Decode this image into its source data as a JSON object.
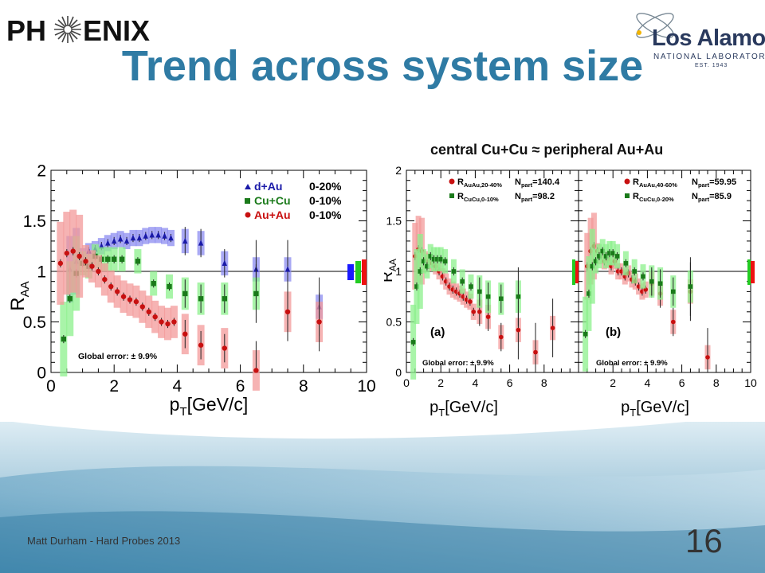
{
  "header": {
    "experiment_logo": {
      "text_before": "PH",
      "text_after": "ENIX"
    },
    "lab_logo": {
      "name": "Los Alamos",
      "sub": "NATIONAL LABORATORY",
      "est": "EST. 1943"
    }
  },
  "slide": {
    "title": "Trend across system size",
    "subtitle": "central Cu+Cu ≈ peripheral Au+Au",
    "footer": "Matt Durham - Hard Probes 2013",
    "page_number": "16"
  },
  "colors": {
    "title": "#2f7ba4",
    "dAu": "#1a1aa8",
    "CuCu": "#1a7a1a",
    "AuAu": "#c81010"
  },
  "chart_data": [
    {
      "type": "scatter",
      "id": "left",
      "xlabel": "p_T[GeV/c]",
      "ylabel": "R_AA",
      "xlim": [
        0,
        10
      ],
      "ylim": [
        0,
        2
      ],
      "x_ticks": [
        "0",
        "2",
        "4",
        "6",
        "8",
        "10"
      ],
      "y_ticks": [
        "0",
        "0.5",
        "1",
        "1.5",
        "2"
      ],
      "reference_line": 1,
      "global_error": "Global error:  ± 9.9%",
      "legend_position": "top-right",
      "series": [
        {
          "name": "d+Au",
          "cent": "0-20%",
          "marker": "triangle",
          "color": "#1a1aa8",
          "x": [
            0.6,
            0.8,
            1.0,
            1.2,
            1.4,
            1.6,
            1.8,
            2.0,
            2.2,
            2.4,
            2.6,
            2.8,
            3.0,
            3.2,
            3.4,
            3.6,
            3.8,
            4.25,
            4.75,
            5.5,
            6.5,
            7.5,
            8.5
          ],
          "y": [
            1.02,
            1.1,
            1.15,
            1.2,
            1.22,
            1.25,
            1.28,
            1.3,
            1.32,
            1.3,
            1.33,
            1.33,
            1.35,
            1.36,
            1.36,
            1.35,
            1.33,
            1.3,
            1.28,
            1.08,
            1.02,
            1.02,
            0.65
          ]
        },
        {
          "name": "Cu+Cu",
          "cent": "0-10%",
          "marker": "square",
          "color": "#1a7a1a",
          "x": [
            0.4,
            0.6,
            0.8,
            1.0,
            1.2,
            1.4,
            1.6,
            1.8,
            2.0,
            2.25,
            2.75,
            3.25,
            3.75,
            4.25,
            4.75,
            5.5,
            6.5
          ],
          "y": [
            0.33,
            0.73,
            0.98,
            1.08,
            1.05,
            1.15,
            1.12,
            1.12,
            1.12,
            1.12,
            1.1,
            0.88,
            0.85,
            0.78,
            0.73,
            0.73,
            0.78
          ]
        },
        {
          "name": "Au+Au",
          "cent": "0-10%",
          "marker": "circle",
          "color": "#c81010",
          "x": [
            0.3,
            0.5,
            0.7,
            0.9,
            1.1,
            1.3,
            1.5,
            1.7,
            1.9,
            2.1,
            2.3,
            2.5,
            2.7,
            2.9,
            3.1,
            3.3,
            3.5,
            3.7,
            3.9,
            4.25,
            4.75,
            5.5,
            6.5,
            7.5,
            8.5
          ],
          "y": [
            1.08,
            1.18,
            1.2,
            1.15,
            1.1,
            1.05,
            1.0,
            0.92,
            0.85,
            0.8,
            0.75,
            0.72,
            0.7,
            0.65,
            0.6,
            0.55,
            0.5,
            0.48,
            0.5,
            0.38,
            0.27,
            0.24,
            0.02,
            0.6,
            0.5
          ]
        }
      ]
    },
    {
      "type": "scatter",
      "id": "right-a",
      "panel_label": "(a)",
      "xlabel": "p_T[GeV/c]",
      "ylabel": "R_AA",
      "xlim": [
        0,
        10
      ],
      "ylim": [
        0,
        2
      ],
      "x_ticks": [
        "0",
        "2",
        "4",
        "6",
        "8"
      ],
      "y_ticks": [
        "0",
        "0.5",
        "1",
        "1.5",
        "2"
      ],
      "reference_line": 1,
      "global_error": "Global error:  ± 9.9%",
      "series": [
        {
          "name": "R_AuAu,20-40%",
          "npart": "N_part=140.4",
          "marker": "circle",
          "color": "#c81010",
          "x": [
            0.5,
            0.7,
            0.9,
            1.1,
            1.3,
            1.5,
            1.7,
            1.9,
            2.1,
            2.3,
            2.5,
            2.7,
            2.9,
            3.1,
            3.3,
            3.5,
            3.7,
            3.9,
            4.25,
            4.75,
            5.5,
            6.5,
            7.5,
            8.5
          ],
          "y": [
            1.15,
            1.22,
            1.2,
            1.12,
            1.1,
            1.08,
            1.05,
            1.0,
            0.95,
            0.9,
            0.85,
            0.82,
            0.8,
            0.78,
            0.75,
            0.72,
            0.7,
            0.6,
            0.6,
            0.55,
            0.35,
            0.42,
            0.2,
            0.44
          ]
        },
        {
          "name": "R_CuCu,0-10%",
          "npart": "N_part=98.2",
          "marker": "square",
          "color": "#1a7a1a",
          "x": [
            0.4,
            0.6,
            0.8,
            1.0,
            1.2,
            1.4,
            1.6,
            1.8,
            2.0,
            2.25,
            2.75,
            3.25,
            3.75,
            4.25,
            4.75,
            5.5,
            6.5
          ],
          "y": [
            0.3,
            0.85,
            1.0,
            1.1,
            1.05,
            1.15,
            1.12,
            1.12,
            1.12,
            1.1,
            1.0,
            0.9,
            0.85,
            0.8,
            0.75,
            0.73,
            0.75
          ]
        }
      ]
    },
    {
      "type": "scatter",
      "id": "right-b",
      "panel_label": "(b)",
      "xlabel": "p_T[GeV/c]",
      "xlim": [
        0,
        10
      ],
      "ylim": [
        0,
        2
      ],
      "x_ticks": [
        "2",
        "4",
        "6",
        "8",
        "10"
      ],
      "reference_line": 1,
      "global_error": "Global error:  ± 9.9%",
      "series": [
        {
          "name": "R_AuAu,40-60%",
          "npart": "N_part=59.95",
          "marker": "circle",
          "color": "#c81010",
          "x": [
            0.5,
            0.7,
            0.9,
            1.1,
            1.3,
            1.5,
            1.7,
            1.9,
            2.1,
            2.3,
            2.5,
            2.7,
            2.9,
            3.1,
            3.3,
            3.5,
            3.7,
            3.9,
            4.25,
            4.75,
            5.5,
            6.5,
            7.5
          ],
          "y": [
            1.05,
            1.2,
            1.25,
            1.2,
            1.15,
            1.1,
            1.12,
            1.05,
            1.1,
            1.0,
            1.0,
            0.95,
            0.98,
            0.92,
            0.9,
            0.85,
            0.8,
            0.82,
            0.88,
            0.78,
            0.5,
            0.8,
            0.15
          ]
        },
        {
          "name": "R_CuCu,0-20%",
          "npart": "N_part=85.9",
          "marker": "square",
          "color": "#1a7a1a",
          "x": [
            0.4,
            0.6,
            0.8,
            1.0,
            1.2,
            1.4,
            1.6,
            1.8,
            2.0,
            2.25,
            2.75,
            3.25,
            3.75,
            4.25,
            4.75,
            5.5,
            6.5
          ],
          "y": [
            0.38,
            0.78,
            1.05,
            1.1,
            1.15,
            1.2,
            1.15,
            1.18,
            1.18,
            1.15,
            1.08,
            1.0,
            0.95,
            0.9,
            0.88,
            0.8,
            0.85
          ]
        }
      ]
    }
  ]
}
